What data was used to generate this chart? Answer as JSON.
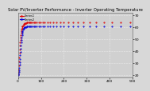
{
  "title": "Solar PV/Inverter Performance - Inverter Operating Temperature",
  "series": [
    {
      "label": "Series1",
      "color": "#dd0000",
      "x": [
        1,
        2,
        3,
        4,
        5,
        6,
        7,
        8,
        9,
        10,
        11,
        12,
        13,
        14,
        15,
        16,
        17,
        18,
        19,
        20,
        22,
        24,
        26,
        28,
        30,
        32,
        35,
        38,
        41,
        45,
        49,
        53,
        58,
        63,
        69,
        75,
        82,
        90,
        98,
        107,
        117,
        128,
        140,
        153,
        167,
        183,
        200,
        219,
        239,
        261,
        285,
        312,
        341,
        373,
        408,
        446,
        488
      ],
      "y": [
        20.5,
        22.5,
        25.0,
        28.0,
        31.5,
        35.0,
        38.5,
        41.5,
        44.5,
        47.0,
        49.5,
        51.5,
        53.5,
        55.0,
        56.5,
        57.8,
        58.8,
        59.5,
        60.2,
        60.8,
        61.5,
        62.0,
        62.5,
        62.8,
        63.0,
        63.2,
        63.4,
        63.5,
        63.6,
        63.7,
        63.8,
        63.85,
        63.9,
        63.9,
        63.95,
        64.0,
        64.0,
        64.0,
        64.0,
        64.0,
        64.0,
        64.0,
        64.0,
        64.0,
        64.0,
        64.0,
        64.0,
        64.0,
        64.0,
        64.0,
        64.0,
        64.0,
        64.0,
        64.0,
        64.0,
        64.0,
        64.0
      ]
    },
    {
      "label": "Series2",
      "color": "#0000dd",
      "x": [
        1,
        2,
        3,
        4,
        5,
        6,
        7,
        8,
        9,
        10,
        11,
        12,
        13,
        14,
        15,
        16,
        17,
        18,
        19,
        20,
        22,
        24,
        26,
        28,
        30,
        32,
        35,
        38,
        41,
        45,
        49,
        53,
        58,
        63,
        69,
        75,
        82,
        90,
        98,
        107,
        117,
        128,
        140,
        153,
        167,
        183,
        200,
        219,
        239,
        261,
        285,
        312,
        341,
        373,
        408,
        446,
        488
      ],
      "y": [
        20.0,
        20.5,
        21.5,
        22.5,
        24.0,
        26.0,
        28.5,
        31.0,
        33.5,
        36.5,
        39.0,
        42.0,
        44.5,
        47.0,
        49.0,
        51.0,
        53.0,
        54.5,
        55.8,
        56.8,
        58.0,
        58.8,
        59.3,
        59.6,
        59.8,
        60.0,
        60.1,
        60.2,
        60.25,
        60.3,
        60.3,
        60.3,
        60.3,
        60.3,
        60.3,
        60.3,
        60.3,
        60.3,
        60.3,
        60.3,
        60.3,
        60.3,
        60.3,
        60.3,
        60.3,
        60.3,
        60.3,
        60.3,
        60.3,
        60.3,
        60.3,
        60.3,
        60.3,
        60.3,
        60.3,
        60.3,
        60.3
      ]
    }
  ],
  "xlim": [
    0,
    500
  ],
  "ylim": [
    18,
    72
  ],
  "xscale": "linear",
  "bg_color": "#d8d8d8",
  "plot_bg": "#d0d0d0",
  "grid_color": "#ffffff",
  "title_fontsize": 3.8,
  "tick_fontsize": 3.2,
  "yticks": [
    20,
    30,
    40,
    50,
    60,
    70
  ],
  "xticks": [
    0,
    100,
    200,
    300,
    400,
    500
  ],
  "legend_items": [
    {
      "label": "Series1",
      "color": "#dd0000"
    },
    {
      "label": "Series2",
      "color": "#0000dd"
    }
  ]
}
